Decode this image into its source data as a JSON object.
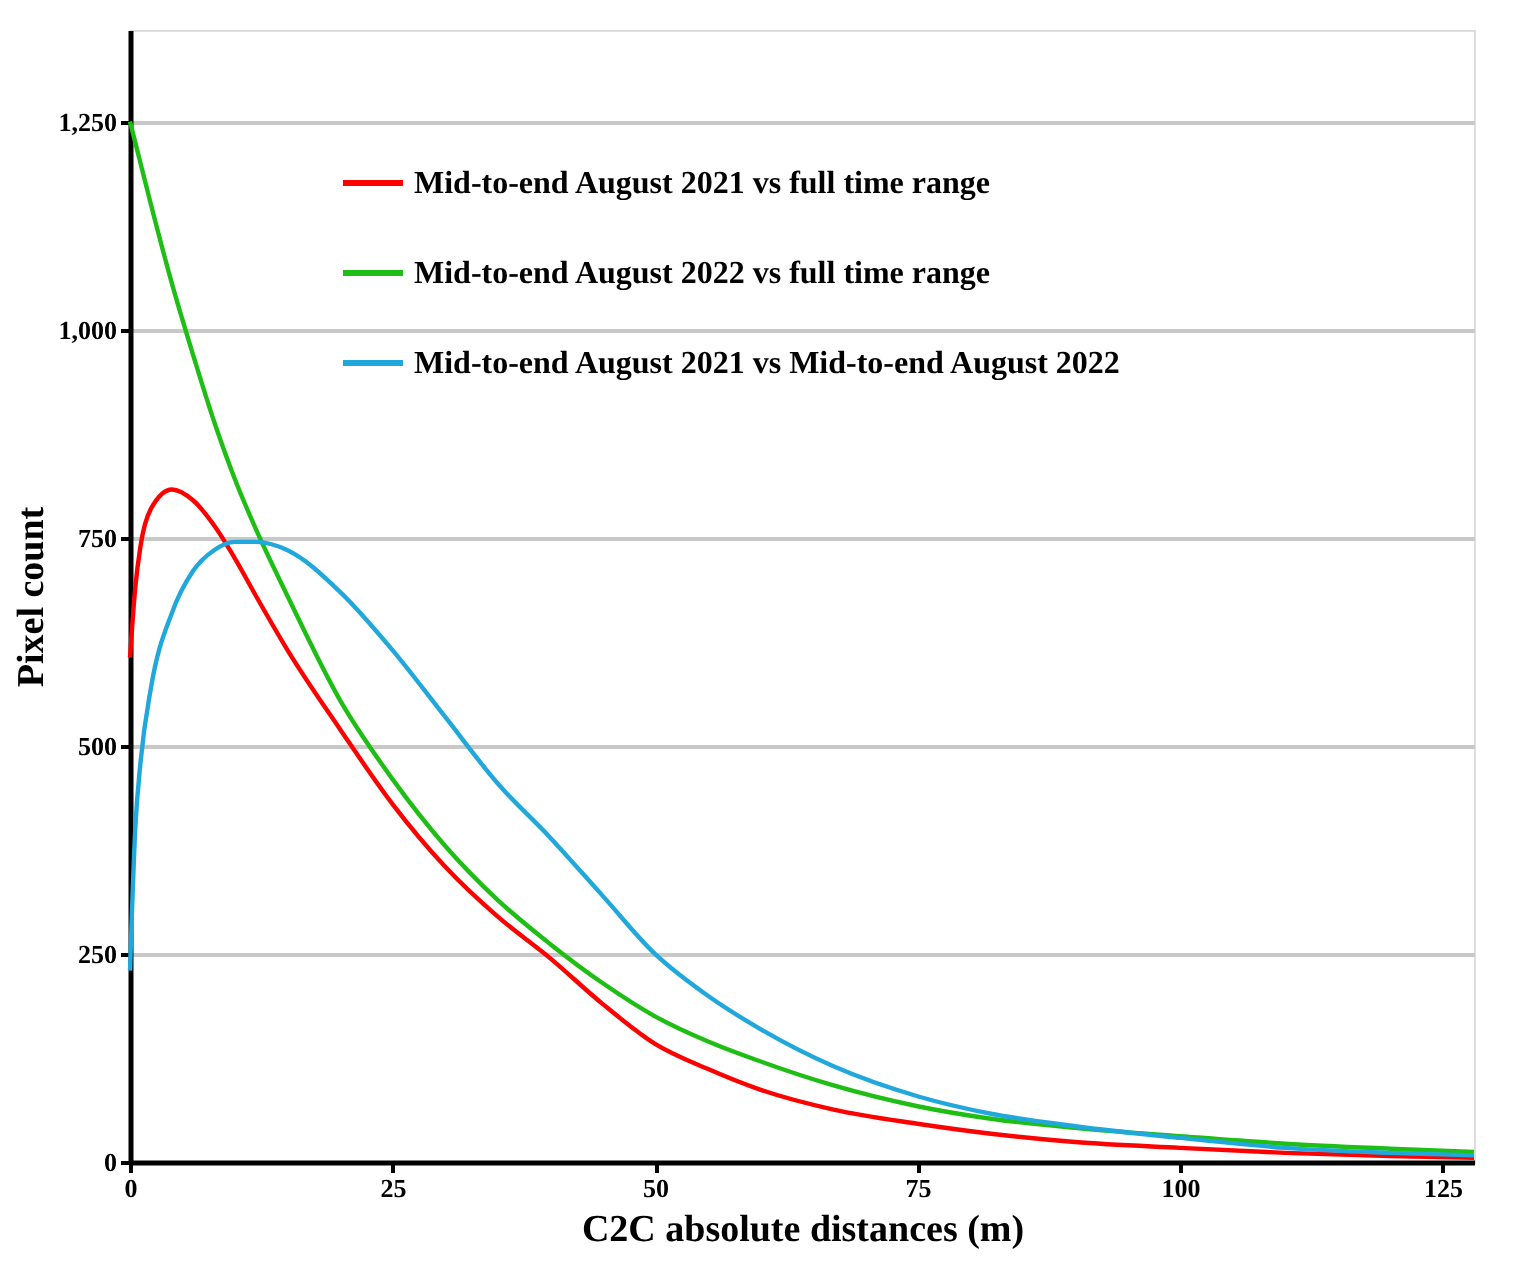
{
  "chart_data": {
    "type": "line",
    "xlabel": "C2C absolute distances (m)",
    "ylabel": "Pixel count",
    "x": [
      0,
      0.5,
      1,
      2,
      4,
      6,
      8,
      10,
      12,
      15,
      20,
      25,
      30,
      35,
      40,
      45,
      50,
      55,
      60,
      67,
      75,
      82,
      90,
      100,
      110,
      120,
      128
    ],
    "series": [
      {
        "name": "Mid-to-end August 2021 vs full time range",
        "color": "#ff0000",
        "values": [
          606,
          690,
          740,
          785,
          808,
          795,
          765,
          725,
          680,
          615,
          520,
          430,
          355,
          295,
          245,
          190,
          142,
          112,
          87,
          63,
          46,
          34,
          24,
          17,
          11,
          7,
          5
        ]
      },
      {
        "name": "Mid-to-end August 2022 vs full time range",
        "color": "#1ebe14",
        "values": [
          1250,
          1225,
          1200,
          1150,
          1055,
          970,
          890,
          820,
          760,
          680,
          555,
          460,
          380,
          315,
          262,
          215,
          175,
          145,
          121,
          92,
          67,
          52,
          41,
          31,
          22,
          16,
          12
        ]
      },
      {
        "name": "Mid-to-end August 2021 vs Mid-to-end August 2022",
        "color": "#20a8dc",
        "values": [
          230,
          400,
          480,
          570,
          660,
          710,
          735,
          745,
          745,
          735,
          685,
          615,
          535,
          455,
          390,
          320,
          250,
          200,
          160,
          115,
          79,
          58,
          43,
          29,
          17,
          11,
          8
        ]
      }
    ],
    "xlim": [
      0,
      128
    ],
    "xticks": [
      0,
      25,
      50,
      75,
      100,
      125
    ],
    "ylim": [
      0,
      1360
    ],
    "yticks": [
      0,
      {
        "value": 250,
        "label": "250"
      },
      {
        "value": 500,
        "label": "500"
      },
      {
        "value": 750,
        "label": "750"
      },
      {
        "value": 1000,
        "label": "1,000"
      },
      {
        "value": 1250,
        "label": "1,250"
      }
    ],
    "grid": "y",
    "legend": "top",
    "marker": "none",
    "line_style": "solid"
  }
}
